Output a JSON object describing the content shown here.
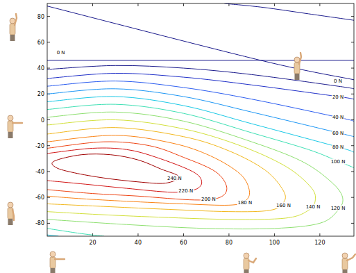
{
  "chart_data": {
    "type": "contour",
    "xlim": [
      0,
      135
    ],
    "ylim": [
      -90,
      90
    ],
    "xticks": [
      20,
      40,
      60,
      80,
      100,
      120
    ],
    "yticks": [
      -80,
      -60,
      -40,
      -20,
      0,
      20,
      40,
      60,
      80
    ],
    "series": [
      {
        "name": "0 N",
        "color": "#1a1a8c",
        "x": [
          0,
          30,
          60,
          90,
          128,
          135,
          null,
          0,
          135,
          null,
          0,
          94,
          135,
          null,
          78,
          95,
          115,
          135
        ],
        "y": [
          39,
          42,
          40,
          35,
          26,
          24,
          null,
          46,
          46,
          null,
          88,
          46,
          31,
          null,
          90,
          87,
          82,
          77
        ],
        "label_x": [
          128,
          6
        ],
        "label_y": [
          30,
          52
        ]
      },
      {
        "name": "20 N",
        "color": "#1f2fc8",
        "x": [
          0,
          30,
          60,
          90,
          128,
          135
        ],
        "y": [
          32,
          36,
          33,
          27,
          18,
          16
        ],
        "label_x": [
          128
        ],
        "label_y": [
          18
        ]
      },
      {
        "name": "40 N",
        "color": "#2a5cf0",
        "x": [
          0,
          30,
          60,
          90,
          128,
          135
        ],
        "y": [
          26,
          30,
          25,
          16,
          2,
          -1
        ],
        "label_x": [
          128
        ],
        "label_y": [
          2
        ]
      },
      {
        "name": "60 N",
        "color": "#1c96f5",
        "x": [
          0,
          30,
          60,
          90,
          128,
          135
        ],
        "y": [
          20,
          24,
          18,
          6,
          -10,
          -13
        ],
        "label_x": [
          128
        ],
        "label_y": [
          -10
        ]
      },
      {
        "name": "80 N",
        "color": "#18c8e6",
        "x": [
          0,
          30,
          60,
          90,
          128,
          135,
          null,
          0,
          5
        ],
        "y": [
          14,
          18,
          11,
          -3,
          -21,
          -25,
          null,
          -89,
          -90
        ],
        "label_x": [
          128
        ],
        "label_y": [
          -21
        ]
      },
      {
        "name": "100 N",
        "color": "#3ee0b4",
        "x": [
          0,
          30,
          60,
          90,
          115,
          128,
          135,
          null,
          0,
          15,
          25
        ],
        "y": [
          8,
          12,
          5,
          -10,
          -23,
          -32,
          -37,
          null,
          -84,
          -88,
          -90
        ],
        "label_x": [
          128
        ],
        "label_y": [
          -32
        ]
      },
      {
        "name": "120 N",
        "color": "#8ee070",
        "x": [
          0,
          30,
          60,
          90,
          112,
          125,
          130,
          128,
          120,
          100,
          70,
          35,
          0
        ],
        "y": [
          2,
          6,
          -1,
          -17,
          -32,
          -48,
          -60,
          -70,
          -80,
          -84,
          -84,
          -81,
          -77
        ],
        "label_x": [
          128
        ],
        "label_y": [
          -68
        ]
      },
      {
        "name": "140 N",
        "color": "#d2e03a",
        "x": [
          0,
          30,
          60,
          85,
          105,
          116,
          118,
          115,
          105,
          80,
          45,
          20,
          0
        ],
        "y": [
          -4,
          0,
          -7,
          -20,
          -36,
          -52,
          -62,
          -70,
          -76,
          -77,
          -75,
          -73,
          -71
        ],
        "label_x": [
          117
        ],
        "label_y": [
          -67
        ]
      },
      {
        "name": "160 N",
        "color": "#f2b81e",
        "x": [
          0,
          30,
          60,
          80,
          96,
          104,
          104,
          98,
          80,
          50,
          25,
          0
        ],
        "y": [
          -11,
          -6,
          -13,
          -24,
          -39,
          -55,
          -64,
          -70,
          -71,
          -69,
          -67,
          -65
        ],
        "label_x": [
          104
        ],
        "label_y": [
          -66
        ]
      },
      {
        "name": "180 N",
        "color": "#fa8214",
        "x": [
          0,
          30,
          55,
          72,
          85,
          89,
          87,
          80,
          60,
          35,
          15,
          0
        ],
        "y": [
          -17,
          -12,
          -18,
          -28,
          -42,
          -55,
          -63,
          -66,
          -65,
          -63,
          -61,
          -59
        ],
        "label_x": [
          87
        ],
        "label_y": [
          -64
        ]
      },
      {
        "name": "200 N",
        "color": "#ee4414",
        "x": [
          0,
          25,
          45,
          60,
          74,
          79,
          76,
          65,
          40,
          20,
          0
        ],
        "y": [
          -22,
          -17,
          -20,
          -29,
          -40,
          -52,
          -60,
          -62,
          -59,
          -57,
          -54
        ],
        "label_x": [
          71
        ],
        "label_y": [
          -61
        ]
      },
      {
        "name": "220 N",
        "color": "#d21414",
        "x": [
          0,
          20,
          35,
          48,
          64,
          68,
          65,
          55,
          35,
          18,
          0
        ],
        "y": [
          -26,
          -22,
          -23,
          -29,
          -40,
          -48,
          -54,
          -56,
          -53,
          -50,
          -47
        ],
        "label_x": [
          61
        ],
        "label_y": [
          -55
        ]
      },
      {
        "name": "240 N",
        "color": "#a00000",
        "x": [
          3,
          15,
          28,
          40,
          50,
          58,
          52,
          40,
          25,
          12,
          4,
          3
        ],
        "y": [
          -32,
          -27,
          -27,
          -31,
          -38,
          -44,
          -49,
          -48,
          -45,
          -41,
          -37,
          -32
        ],
        "label_x": [
          56
        ],
        "label_y": [
          -45
        ]
      }
    ]
  }
}
